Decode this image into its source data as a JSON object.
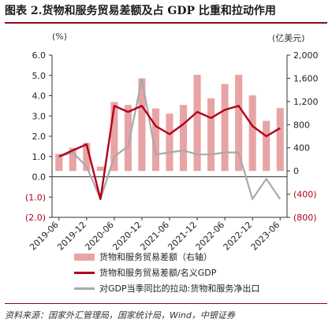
{
  "title": "图表 2.货物和服务贸易差额及占 GDP 比重和拉动作用",
  "left_unit": "(%)",
  "right_unit": "(亿美元)",
  "source": "资料来源：国家外汇管理局，国家统计局，Wind，中银证券",
  "colors": {
    "bar": "#e8a4a5",
    "red_line": "#b0001c",
    "gray_line": "#a9a9a9",
    "axis": "#333333",
    "right_axis_label": "#b0001c"
  },
  "chart_data": {
    "type": "bar",
    "x_tick_labels": [
      "2019-06",
      "2019-12",
      "2020-06",
      "2020-12",
      "2021-06",
      "2021-12",
      "2022-06",
      "2022-12",
      "2023-06"
    ],
    "y_left_ticks": [
      "6.0",
      "5.0",
      "4.0",
      "3.0",
      "2.0",
      "1.0",
      "0.0",
      "(1.0)",
      "(2.0)"
    ],
    "y_left_values": [
      6,
      5,
      4,
      3,
      2,
      1,
      0,
      -1,
      -2
    ],
    "y_right_ticks": [
      "2,000",
      "1,600",
      "1,200",
      "800",
      "400",
      "0",
      "(400)",
      "(800)"
    ],
    "y_right_values": [
      2000,
      1600,
      1200,
      800,
      400,
      0,
      -400,
      -800
    ],
    "ylim_left": [
      -2,
      6
    ],
    "ylim_right": [
      -800,
      2000
    ],
    "series": [
      {
        "name": "货物和服务贸易差额（右轴）",
        "axis": "right",
        "kind": "bar",
        "values": [
          295,
          400,
          485,
          75,
          1190,
          1140,
          1600,
          1080,
          990,
          1140,
          1660,
          1255,
          1500,
          1660,
          1305,
          865,
          1085
        ]
      },
      {
        "name": "货物和服务贸易差额/名义GDP",
        "axis": "left",
        "kind": "line",
        "values": [
          1.0,
          1.3,
          1.6,
          -1.1,
          3.5,
          3.2,
          3.5,
          2.5,
          2.1,
          2.6,
          3.2,
          2.9,
          3.3,
          3.5,
          2.5,
          2.0,
          2.4
        ]
      },
      {
        "name": "对GDP当季同比的拉动:货物和服务净出口",
        "axis": "left",
        "kind": "line",
        "values": [
          1.0,
          1.2,
          0.5,
          -1.1,
          1.0,
          1.5,
          4.8,
          1.1,
          1.2,
          1.3,
          1.1,
          1.1,
          1.2,
          1.2,
          -1.1,
          -0.1,
          -1.1
        ]
      }
    ]
  }
}
